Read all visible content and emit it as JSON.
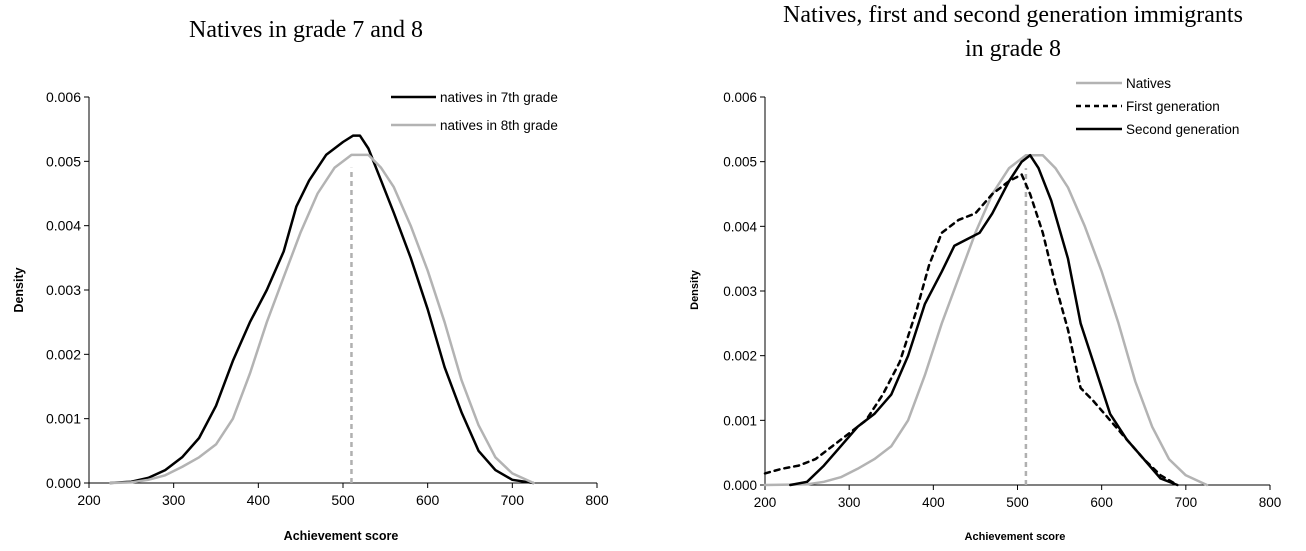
{
  "chart_data": [
    {
      "type": "line",
      "title": [
        "Natives in grade 7 and 8"
      ],
      "xlabel": "Achievement score",
      "ylabel": "Density",
      "xlim": [
        200,
        800
      ],
      "ylim": [
        0,
        0.006
      ],
      "xticks": [
        200,
        300,
        400,
        500,
        600,
        700,
        800
      ],
      "xtick_labels": [
        "200",
        "300",
        "400",
        "500",
        "600",
        "700",
        "800"
      ],
      "yticks": [
        0,
        0.001,
        0.002,
        0.003,
        0.004,
        0.005,
        0.006
      ],
      "ytick_labels": [
        "0.000",
        "0.001",
        "0.002",
        "0.003",
        "0.004",
        "0.005",
        "0.006"
      ],
      "grid": false,
      "legend_position": "top-right",
      "annotations": [
        {
          "type": "vline",
          "x": 510,
          "y_top": 0.0049,
          "style": "dashed",
          "color": "#b0b0b0"
        }
      ],
      "series": [
        {
          "name": "natives in 7th grade",
          "color": "#000000",
          "dash": "solid",
          "points": [
            [
              225,
              0.0
            ],
            [
              250,
              2e-05
            ],
            [
              270,
              8e-05
            ],
            [
              290,
              0.0002
            ],
            [
              310,
              0.0004
            ],
            [
              330,
              0.0007
            ],
            [
              350,
              0.0012
            ],
            [
              370,
              0.0019
            ],
            [
              390,
              0.0025
            ],
            [
              410,
              0.003
            ],
            [
              430,
              0.0036
            ],
            [
              445,
              0.0043
            ],
            [
              460,
              0.0047
            ],
            [
              480,
              0.0051
            ],
            [
              500,
              0.0053
            ],
            [
              512,
              0.0054
            ],
            [
              520,
              0.0054
            ],
            [
              530,
              0.0052
            ],
            [
              545,
              0.0047
            ],
            [
              560,
              0.0042
            ],
            [
              580,
              0.0035
            ],
            [
              600,
              0.0027
            ],
            [
              620,
              0.0018
            ],
            [
              640,
              0.0011
            ],
            [
              660,
              0.0005
            ],
            [
              680,
              0.0002
            ],
            [
              700,
              5e-05
            ],
            [
              725,
              0.0
            ]
          ]
        },
        {
          "name": "natives in 8th grade",
          "color": "#b3b3b3",
          "dash": "solid",
          "points": [
            [
              225,
              0.0
            ],
            [
              250,
              1e-05
            ],
            [
              270,
              5e-05
            ],
            [
              290,
              0.00012
            ],
            [
              310,
              0.00025
            ],
            [
              330,
              0.0004
            ],
            [
              350,
              0.0006
            ],
            [
              370,
              0.001
            ],
            [
              390,
              0.0017
            ],
            [
              410,
              0.0025
            ],
            [
              430,
              0.0032
            ],
            [
              450,
              0.0039
            ],
            [
              470,
              0.0045
            ],
            [
              490,
              0.0049
            ],
            [
              510,
              0.0051
            ],
            [
              530,
              0.0051
            ],
            [
              545,
              0.0049
            ],
            [
              560,
              0.0046
            ],
            [
              580,
              0.004
            ],
            [
              600,
              0.0033
            ],
            [
              620,
              0.0025
            ],
            [
              640,
              0.0016
            ],
            [
              660,
              0.0009
            ],
            [
              680,
              0.0004
            ],
            [
              700,
              0.00015
            ],
            [
              725,
              0.0
            ]
          ]
        }
      ]
    },
    {
      "type": "line",
      "title": [
        "Natives, first and second generation immigrants",
        "in grade 8"
      ],
      "xlabel": "Achievement score",
      "ylabel": "Density",
      "xlim": [
        200,
        800
      ],
      "ylim": [
        0,
        0.006
      ],
      "xticks": [
        200,
        300,
        400,
        500,
        600,
        700,
        800
      ],
      "xtick_labels": [
        "200",
        "300",
        "400",
        "500",
        "600",
        "700",
        "800"
      ],
      "yticks": [
        0,
        0.001,
        0.002,
        0.003,
        0.004,
        0.005,
        0.006
      ],
      "ytick_labels": [
        "0.000",
        "0.001",
        "0.002",
        "0.003",
        "0.004",
        "0.005",
        "0.006"
      ],
      "grid": false,
      "legend_position": "top-right",
      "annotations": [
        {
          "type": "vline",
          "x": 510,
          "y_top": 0.0049,
          "style": "dashed",
          "color": "#b0b0b0"
        }
      ],
      "series": [
        {
          "name": "Natives",
          "color": "#b3b3b3",
          "dash": "solid",
          "points": [
            [
              200,
              0.0
            ],
            [
              250,
              1e-05
            ],
            [
              270,
              5e-05
            ],
            [
              290,
              0.00012
            ],
            [
              310,
              0.00025
            ],
            [
              330,
              0.0004
            ],
            [
              350,
              0.0006
            ],
            [
              370,
              0.001
            ],
            [
              390,
              0.0017
            ],
            [
              410,
              0.0025
            ],
            [
              430,
              0.0032
            ],
            [
              450,
              0.0039
            ],
            [
              470,
              0.0045
            ],
            [
              490,
              0.0049
            ],
            [
              510,
              0.0051
            ],
            [
              530,
              0.0051
            ],
            [
              545,
              0.0049
            ],
            [
              560,
              0.0046
            ],
            [
              580,
              0.004
            ],
            [
              600,
              0.0033
            ],
            [
              620,
              0.0025
            ],
            [
              640,
              0.0016
            ],
            [
              660,
              0.0009
            ],
            [
              680,
              0.0004
            ],
            [
              700,
              0.00015
            ],
            [
              725,
              0.0
            ]
          ]
        },
        {
          "name": "First generation",
          "color": "#000000",
          "dash": "dashed",
          "points": [
            [
              200,
              0.00018
            ],
            [
              220,
              0.00025
            ],
            [
              240,
              0.0003
            ],
            [
              260,
              0.0004
            ],
            [
              280,
              0.0006
            ],
            [
              300,
              0.0008
            ],
            [
              320,
              0.001
            ],
            [
              340,
              0.0014
            ],
            [
              360,
              0.0019
            ],
            [
              380,
              0.0027
            ],
            [
              395,
              0.0034
            ],
            [
              410,
              0.0039
            ],
            [
              430,
              0.0041
            ],
            [
              450,
              0.0042
            ],
            [
              470,
              0.0045
            ],
            [
              490,
              0.0047
            ],
            [
              505,
              0.0048
            ],
            [
              515,
              0.0045
            ],
            [
              530,
              0.0039
            ],
            [
              545,
              0.0031
            ],
            [
              560,
              0.0024
            ],
            [
              575,
              0.0015
            ],
            [
              590,
              0.0013
            ],
            [
              610,
              0.001
            ],
            [
              630,
              0.0007
            ],
            [
              650,
              0.0004
            ],
            [
              670,
              0.00015
            ],
            [
              690,
              0.0
            ]
          ]
        },
        {
          "name": "Second generation",
          "color": "#000000",
          "dash": "solid",
          "points": [
            [
              230,
              0.0
            ],
            [
              250,
              5e-05
            ],
            [
              270,
              0.0003
            ],
            [
              290,
              0.0006
            ],
            [
              310,
              0.0009
            ],
            [
              330,
              0.0011
            ],
            [
              350,
              0.0014
            ],
            [
              370,
              0.002
            ],
            [
              390,
              0.0028
            ],
            [
              410,
              0.0033
            ],
            [
              425,
              0.0037
            ],
            [
              440,
              0.0038
            ],
            [
              455,
              0.0039
            ],
            [
              470,
              0.0042
            ],
            [
              490,
              0.0047
            ],
            [
              505,
              0.005
            ],
            [
              515,
              0.0051
            ],
            [
              525,
              0.0049
            ],
            [
              540,
              0.0044
            ],
            [
              560,
              0.0035
            ],
            [
              575,
              0.0025
            ],
            [
              590,
              0.0019
            ],
            [
              610,
              0.0011
            ],
            [
              630,
              0.0007
            ],
            [
              650,
              0.0004
            ],
            [
              670,
              0.0001
            ],
            [
              690,
              0.0
            ]
          ]
        }
      ]
    }
  ]
}
